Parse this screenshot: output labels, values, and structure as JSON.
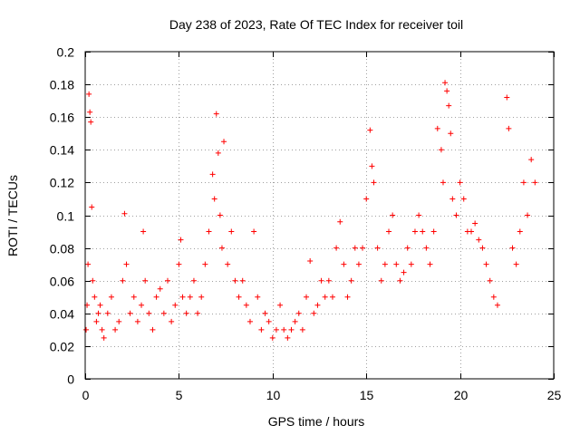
{
  "chart_data": {
    "type": "scatter",
    "title": "Day 238 of 2023, Rate Of TEC Index for receiver toil",
    "xlabel": "GPS time / hours",
    "ylabel": "ROTI / TECUs",
    "xlim": [
      0,
      25
    ],
    "ylim": [
      0,
      0.2
    ],
    "x_ticks": [
      0,
      5,
      10,
      15,
      20,
      25
    ],
    "y_ticks": [
      0,
      0.02,
      0.04,
      0.06,
      0.08,
      0.1,
      0.12,
      0.14,
      0.16,
      0.18,
      0.2
    ],
    "x_tick_labels": [
      "0",
      "5",
      "10",
      "15",
      "20",
      "25"
    ],
    "y_tick_labels": [
      "0",
      "0.02",
      "0.04",
      "0.06",
      "0.08",
      "0.1",
      "0.12",
      "0.14",
      "0.16",
      "0.18",
      "0.2"
    ],
    "grid": true,
    "legend": "none",
    "marker": "+",
    "color": "#ff0000",
    "series": [
      {
        "x": [
          0.05,
          0.1,
          0.15,
          0.2,
          0.25,
          0.3,
          0.35,
          0.4,
          0.5,
          0.6,
          0.7,
          0.8,
          0.9,
          1.0,
          1.2,
          1.4,
          1.6,
          1.8,
          2.0,
          2.1,
          2.2,
          2.4,
          2.6,
          2.8,
          3.0,
          3.1,
          3.2,
          3.4,
          3.6,
          3.8,
          4.0,
          4.2,
          4.4,
          4.6,
          4.8,
          5.0,
          5.1,
          5.2,
          5.4,
          5.6,
          5.8,
          6.0,
          6.2,
          6.4,
          6.6,
          6.8,
          6.9,
          7.0,
          7.1,
          7.2,
          7.3,
          7.4,
          7.6,
          7.8,
          8.0,
          8.2,
          8.4,
          8.6,
          8.8,
          9.0,
          9.2,
          9.4,
          9.6,
          9.8,
          10.0,
          10.2,
          10.4,
          10.6,
          10.8,
          11.0,
          11.2,
          11.4,
          11.6,
          11.8,
          12.0,
          12.2,
          12.4,
          12.6,
          12.8,
          13.0,
          13.2,
          13.4,
          13.6,
          13.8,
          14.0,
          14.2,
          14.4,
          14.6,
          14.8,
          15.0,
          15.2,
          15.3,
          15.4,
          15.6,
          15.8,
          16.0,
          16.2,
          16.4,
          16.6,
          16.8,
          17.0,
          17.2,
          17.4,
          17.6,
          17.8,
          18.0,
          18.2,
          18.4,
          18.6,
          18.8,
          19.0,
          19.1,
          19.2,
          19.3,
          19.4,
          19.5,
          19.6,
          19.8,
          20.0,
          20.2,
          20.4,
          20.6,
          20.8,
          21.0,
          21.2,
          21.4,
          21.6,
          21.8,
          22.0,
          22.5,
          22.6,
          22.8,
          23.0,
          23.2,
          23.4,
          23.6,
          23.8,
          24.0
        ],
        "y": [
          0.03,
          0.045,
          0.07,
          0.174,
          0.163,
          0.157,
          0.105,
          0.06,
          0.05,
          0.035,
          0.04,
          0.045,
          0.03,
          0.025,
          0.04,
          0.05,
          0.03,
          0.035,
          0.06,
          0.101,
          0.07,
          0.04,
          0.05,
          0.035,
          0.045,
          0.09,
          0.06,
          0.04,
          0.03,
          0.05,
          0.055,
          0.04,
          0.06,
          0.035,
          0.045,
          0.07,
          0.085,
          0.05,
          0.04,
          0.05,
          0.06,
          0.04,
          0.05,
          0.07,
          0.09,
          0.125,
          0.11,
          0.162,
          0.138,
          0.1,
          0.08,
          0.145,
          0.07,
          0.09,
          0.06,
          0.05,
          0.06,
          0.045,
          0.035,
          0.09,
          0.05,
          0.03,
          0.04,
          0.035,
          0.025,
          0.03,
          0.045,
          0.03,
          0.025,
          0.03,
          0.035,
          0.04,
          0.03,
          0.05,
          0.072,
          0.04,
          0.045,
          0.06,
          0.05,
          0.06,
          0.05,
          0.08,
          0.096,
          0.07,
          0.05,
          0.06,
          0.08,
          0.07,
          0.08,
          0.11,
          0.152,
          0.13,
          0.12,
          0.08,
          0.06,
          0.07,
          0.09,
          0.1,
          0.07,
          0.06,
          0.065,
          0.08,
          0.07,
          0.09,
          0.1,
          0.09,
          0.08,
          0.07,
          0.09,
          0.153,
          0.14,
          0.12,
          0.181,
          0.176,
          0.167,
          0.15,
          0.11,
          0.1,
          0.12,
          0.11,
          0.09,
          0.09,
          0.095,
          0.085,
          0.08,
          0.07,
          0.06,
          0.05,
          0.045,
          0.172,
          0.153,
          0.08,
          0.07,
          0.09,
          0.12,
          0.1,
          0.134,
          0.12
        ]
      }
    ]
  }
}
